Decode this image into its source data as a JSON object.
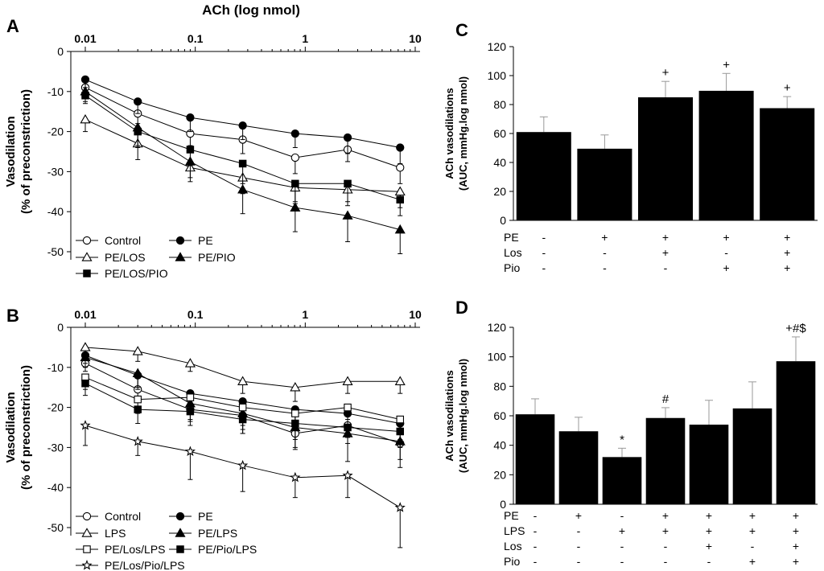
{
  "figure": {
    "top_xlabel": "ACh (log nmol)"
  },
  "chart_data": [
    {
      "id": "A",
      "panel_label": "A",
      "type": "line",
      "xscale": "log",
      "xlim": [
        0.01,
        10
      ],
      "ylim": [
        -50,
        0
      ],
      "xticks": [
        0.01,
        0.1,
        1,
        10
      ],
      "xtick_labels": [
        "0.01",
        "0.1",
        "1",
        "10"
      ],
      "yticks": [
        0,
        -10,
        -20,
        -30,
        -40,
        -50
      ],
      "ytick_labels": [
        "0",
        "-10",
        "-20",
        "-30",
        "-40",
        "-50"
      ],
      "ylabel_line1": "Vasodilation",
      "ylabel_line2": "(% of preconstriction)",
      "x": [
        0.01,
        0.03,
        0.09,
        0.27,
        0.81,
        2.43,
        7.29
      ],
      "series": [
        {
          "name": "Control",
          "marker": "circle-open",
          "values": [
            -9,
            -15.5,
            -20.5,
            -22,
            -26.5,
            -24.5,
            -29
          ],
          "errors": [
            2,
            2.5,
            3,
            3.5,
            4,
            3,
            4
          ]
        },
        {
          "name": "PE",
          "marker": "circle-filled",
          "values": [
            -7,
            -12.5,
            -16.5,
            -18.5,
            -20.5,
            -21.5,
            -24
          ],
          "errors": [
            2,
            3,
            3.5,
            3.5,
            3.5,
            4,
            4
          ]
        },
        {
          "name": "PE/LOS",
          "marker": "triangle-open",
          "values": [
            -17,
            -23,
            -29,
            -31.5,
            -34,
            -34.5,
            -35
          ],
          "errors": [
            3,
            4,
            3.5,
            4,
            4,
            4,
            4
          ]
        },
        {
          "name": "PE/PIO",
          "marker": "triangle-filled",
          "values": [
            -10,
            -19,
            -27.5,
            -34.5,
            -39,
            -41,
            -44.5
          ],
          "errors": [
            2.5,
            5,
            4,
            6,
            6,
            6.5,
            6
          ]
        },
        {
          "name": "PE/LOS/PIO",
          "marker": "square-filled",
          "values": [
            -11,
            -20,
            -24.5,
            -28,
            -33,
            -33,
            -37
          ],
          "errors": [
            2,
            3.5,
            4,
            5,
            4.5,
            4.5,
            4
          ]
        }
      ]
    },
    {
      "id": "B",
      "panel_label": "B",
      "type": "line",
      "xscale": "log",
      "xlim": [
        0.01,
        10
      ],
      "ylim": [
        -50,
        0
      ],
      "xticks": [
        0.01,
        0.1,
        1,
        10
      ],
      "xtick_labels": [
        "0.01",
        "0.1",
        "1",
        "10"
      ],
      "yticks": [
        0,
        -10,
        -20,
        -30,
        -40,
        -50
      ],
      "ytick_labels": [
        "0",
        "-10",
        "-20",
        "-30",
        "-40",
        "-50"
      ],
      "ylabel_line1": "Vasodilation",
      "ylabel_line2": "(% of preconstriction)",
      "x": [
        0.01,
        0.03,
        0.09,
        0.27,
        0.81,
        2.43,
        7.29
      ],
      "series": [
        {
          "name": "Control",
          "marker": "circle-open",
          "values": [
            -9,
            -15.5,
            -20.5,
            -22,
            -26.5,
            -24.5,
            -29
          ],
          "errors": [
            2,
            2.5,
            3,
            3.5,
            4,
            3,
            4
          ]
        },
        {
          "name": "PE",
          "marker": "circle-filled",
          "values": [
            -7,
            -12,
            -16.5,
            -18.5,
            -20.5,
            -21.5,
            -24
          ],
          "errors": [
            2,
            3,
            3.5,
            3.5,
            3.5,
            4,
            4
          ]
        },
        {
          "name": "LPS",
          "marker": "triangle-open",
          "values": [
            -5,
            -6,
            -9,
            -13.5,
            -15,
            -13.5,
            -13.5
          ],
          "errors": [
            2.5,
            2.5,
            2,
            3,
            3.5,
            3,
            3
          ]
        },
        {
          "name": "PE/LPS",
          "marker": "triangle-filled",
          "values": [
            -7.5,
            -11.5,
            -19,
            -21.5,
            -25,
            -26.5,
            -28.5
          ],
          "errors": [
            2.5,
            4,
            4,
            5,
            5,
            7,
            6.5
          ]
        },
        {
          "name": "PE/Los/LPS",
          "marker": "square-open",
          "values": [
            -12.5,
            -18,
            -17.5,
            -20,
            -21.5,
            -20,
            -23
          ],
          "errors": [
            3,
            3.5,
            4,
            4.5,
            4,
            3,
            3
          ]
        },
        {
          "name": "PE/Pio/LPS",
          "marker": "square-filled",
          "values": [
            -14,
            -20.5,
            -21,
            -23,
            -24,
            -25,
            -26
          ],
          "errors": [
            3,
            3.5,
            3.5,
            3.5,
            4,
            4,
            4
          ]
        },
        {
          "name": "PE/Los/Pio/LPS",
          "marker": "star-open",
          "values": [
            -24.5,
            -28.5,
            -31,
            -34.5,
            -37.5,
            -37,
            -45
          ],
          "errors": [
            5,
            3.5,
            7,
            6.5,
            5,
            5.5,
            10
          ]
        }
      ]
    },
    {
      "id": "C",
      "panel_label": "C",
      "type": "bar",
      "ylabel_line1": "ACh vasodilations",
      "ylabel_line2": "(AUC, mmHg.log nmol)",
      "ylim": [
        0,
        120
      ],
      "yticks": [
        0,
        20,
        40,
        60,
        80,
        100,
        120
      ],
      "ytick_labels": [
        "0",
        "20",
        "40",
        "60",
        "80",
        "100",
        "120"
      ],
      "values": [
        61,
        49.5,
        85,
        89.5,
        77.5
      ],
      "errors": [
        10.5,
        9.5,
        11,
        12,
        8
      ],
      "annotations": [
        "",
        "",
        "+",
        "+",
        "+"
      ],
      "treatment_rows": [
        {
          "label": "PE",
          "marks": [
            "-",
            "+",
            "+",
            "+",
            "+"
          ]
        },
        {
          "label": "Los",
          "marks": [
            "-",
            "-",
            "+",
            "-",
            "+"
          ]
        },
        {
          "label": "Pio",
          "marks": [
            "-",
            "-",
            "-",
            "+",
            "+"
          ]
        }
      ]
    },
    {
      "id": "D",
      "panel_label": "D",
      "type": "bar",
      "ylabel_line1": "ACh vasodilations",
      "ylabel_line2": "(AUC, mmHg.log nmol)",
      "ylim": [
        0,
        120
      ],
      "yticks": [
        0,
        20,
        40,
        60,
        80,
        100,
        120
      ],
      "ytick_labels": [
        "0",
        "20",
        "40",
        "60",
        "80",
        "100",
        "120"
      ],
      "values": [
        61,
        49.5,
        32,
        58.5,
        54,
        65,
        97
      ],
      "errors": [
        10.5,
        9.5,
        6,
        7,
        16.5,
        18,
        16.5
      ],
      "annotations": [
        "",
        "",
        "*",
        "#",
        "",
        "",
        "+#$"
      ],
      "treatment_rows": [
        {
          "label": "PE",
          "marks": [
            "-",
            "+",
            "-",
            "+",
            "+",
            "+",
            "+"
          ]
        },
        {
          "label": "LPS",
          "marks": [
            "-",
            "-",
            "+",
            "+",
            "+",
            "+",
            "+"
          ]
        },
        {
          "label": "Los",
          "marks": [
            "-",
            "-",
            "-",
            "-",
            "+",
            "-",
            "+"
          ]
        },
        {
          "label": "Pio",
          "marks": [
            "-",
            "-",
            "-",
            "-",
            "-",
            "+",
            "+"
          ]
        }
      ]
    }
  ]
}
